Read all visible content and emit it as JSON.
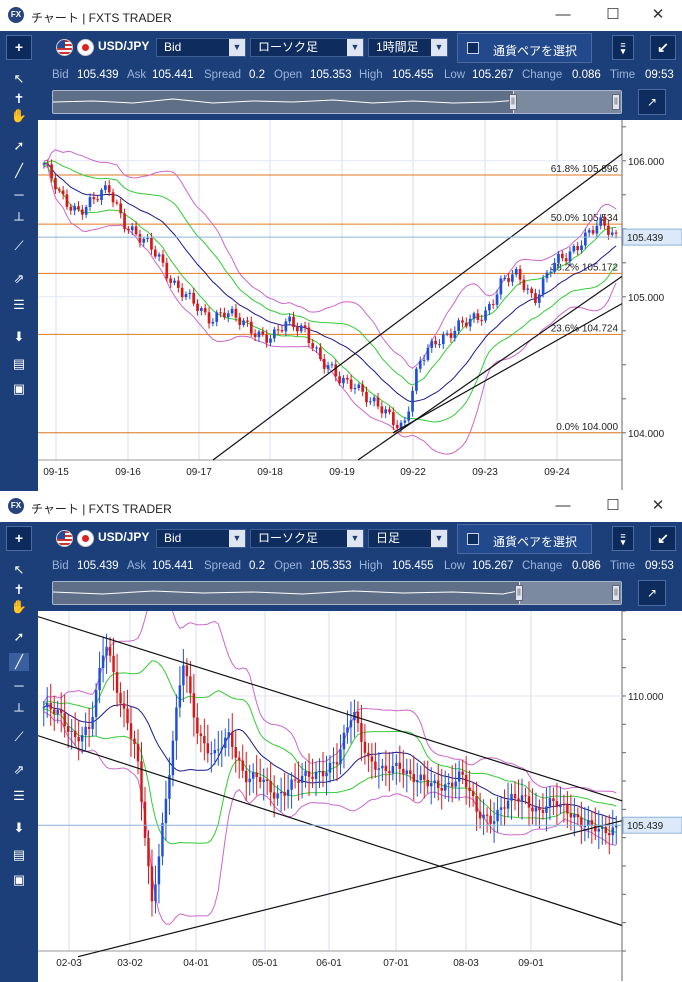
{
  "windows": [
    {
      "title": "チャート | FXTS TRADER",
      "logo": "FX",
      "pair": "USD/JPY",
      "price_type": "Bid",
      "chart_type": "ローソク足",
      "timeframe": "1時間足",
      "currency_select": "通貨ペアを選択",
      "quote": {
        "bid_label": "Bid",
        "bid": "105.439",
        "ask_label": "Ask",
        "ask": "105.441",
        "spread_label": "Spread",
        "spread": "0.2",
        "open_label": "Open",
        "open": "105.353",
        "high_label": "High",
        "high": "105.455",
        "low_label": "Low",
        "low": "105.267",
        "change_label": "Change",
        "change": "0.086",
        "time_label": "Time",
        "time": "09:53"
      },
      "x_ticks": [
        "09-15",
        "09-16",
        "09-17",
        "09-18",
        "09-19",
        "09-22",
        "09-23",
        "09-24"
      ],
      "y_ticks": [
        "106.000",
        "105.000",
        "104.000"
      ],
      "current_price_tag": "105.439",
      "fib_labels": [
        "61.8%  105.896",
        "50.0%  105.534",
        "38.2%  105.172",
        "23.6%  104.724",
        "0.0%  104.000"
      ]
    },
    {
      "title": "チャート | FXTS TRADER",
      "logo": "FX",
      "pair": "USD/JPY",
      "price_type": "Bid",
      "chart_type": "ローソク足",
      "timeframe": "日足",
      "currency_select": "通貨ペアを選択",
      "quote": {
        "bid_label": "Bid",
        "bid": "105.439",
        "ask_label": "Ask",
        "ask": "105.441",
        "spread_label": "Spread",
        "spread": "0.2",
        "open_label": "Open",
        "open": "105.353",
        "high_label": "High",
        "high": "105.455",
        "low_label": "Low",
        "low": "105.267",
        "change_label": "Change",
        "change": "0.086",
        "time_label": "Time",
        "time": "09:53"
      },
      "x_ticks": [
        "02-03",
        "03-02",
        "04-01",
        "05-01",
        "06-01",
        "07-01",
        "08-03",
        "09-01"
      ],
      "y_ticks": [
        "110.000"
      ],
      "current_price_tag": "105.439"
    }
  ],
  "icons": {
    "minimize": "minimize-icon",
    "maximize": "maximize-icon",
    "close": "close-icon"
  },
  "colors": {
    "frame": "#1c3f7a",
    "up_candle": "#1e4fd8",
    "down_candle": "#d21a1a",
    "fib_line": "#e07a1f",
    "band_outer": "#cc66cc",
    "band_inner": "#33cc33",
    "ma": "#1a1a8c"
  },
  "chart_data": [
    {
      "type": "candlestick",
      "timeframe": "1時間足",
      "x_ticks": [
        "09-15",
        "09-16",
        "09-17",
        "09-18",
        "09-19",
        "09-22",
        "09-23",
        "09-24"
      ],
      "y_ticks": [
        106.0,
        105.0,
        104.0
      ],
      "ylim": [
        103.8,
        106.3
      ],
      "current_price": 105.439,
      "fibonacci": [
        {
          "level": "61.8%",
          "price": 105.896
        },
        {
          "level": "50.0%",
          "price": 105.534
        },
        {
          "level": "38.2%",
          "price": 105.172
        },
        {
          "level": "23.6%",
          "price": 104.724
        },
        {
          "level": "0.0%",
          "price": 104.0
        }
      ],
      "close_path": [
        105.98,
        105.72,
        105.65,
        105.7,
        105.78,
        105.55,
        105.4,
        105.3,
        105.1,
        104.95,
        104.85,
        104.9,
        104.8,
        104.75,
        104.7,
        104.8,
        104.78,
        104.5,
        104.4,
        104.38,
        104.2,
        104.15,
        104.05,
        104.5,
        104.7,
        104.75,
        104.8,
        104.9,
        105.1,
        105.15,
        105.0,
        105.2,
        105.3,
        105.45,
        105.52,
        105.44
      ]
    },
    {
      "type": "candlestick",
      "timeframe": "日足",
      "x_ticks": [
        "02-03",
        "03-02",
        "04-01",
        "05-01",
        "06-01",
        "07-01",
        "08-03",
        "09-01"
      ],
      "y_ticks": [
        110.0
      ],
      "ylim": [
        101.0,
        113.0
      ],
      "current_price": 105.439,
      "close_path": [
        109.6,
        109.3,
        108.6,
        108.8,
        112.0,
        109.8,
        107.9,
        102.7,
        106.8,
        111.2,
        108.7,
        107.8,
        108.6,
        107.2,
        107.0,
        106.5,
        106.9,
        107.1,
        107.4,
        107.7,
        109.5,
        107.8,
        107.2,
        107.6,
        107.1,
        106.8,
        106.9,
        107.2,
        105.9,
        105.7,
        106.2,
        106.5,
        105.9,
        106.2,
        106.0,
        105.4,
        105.2,
        105.44
      ]
    }
  ]
}
